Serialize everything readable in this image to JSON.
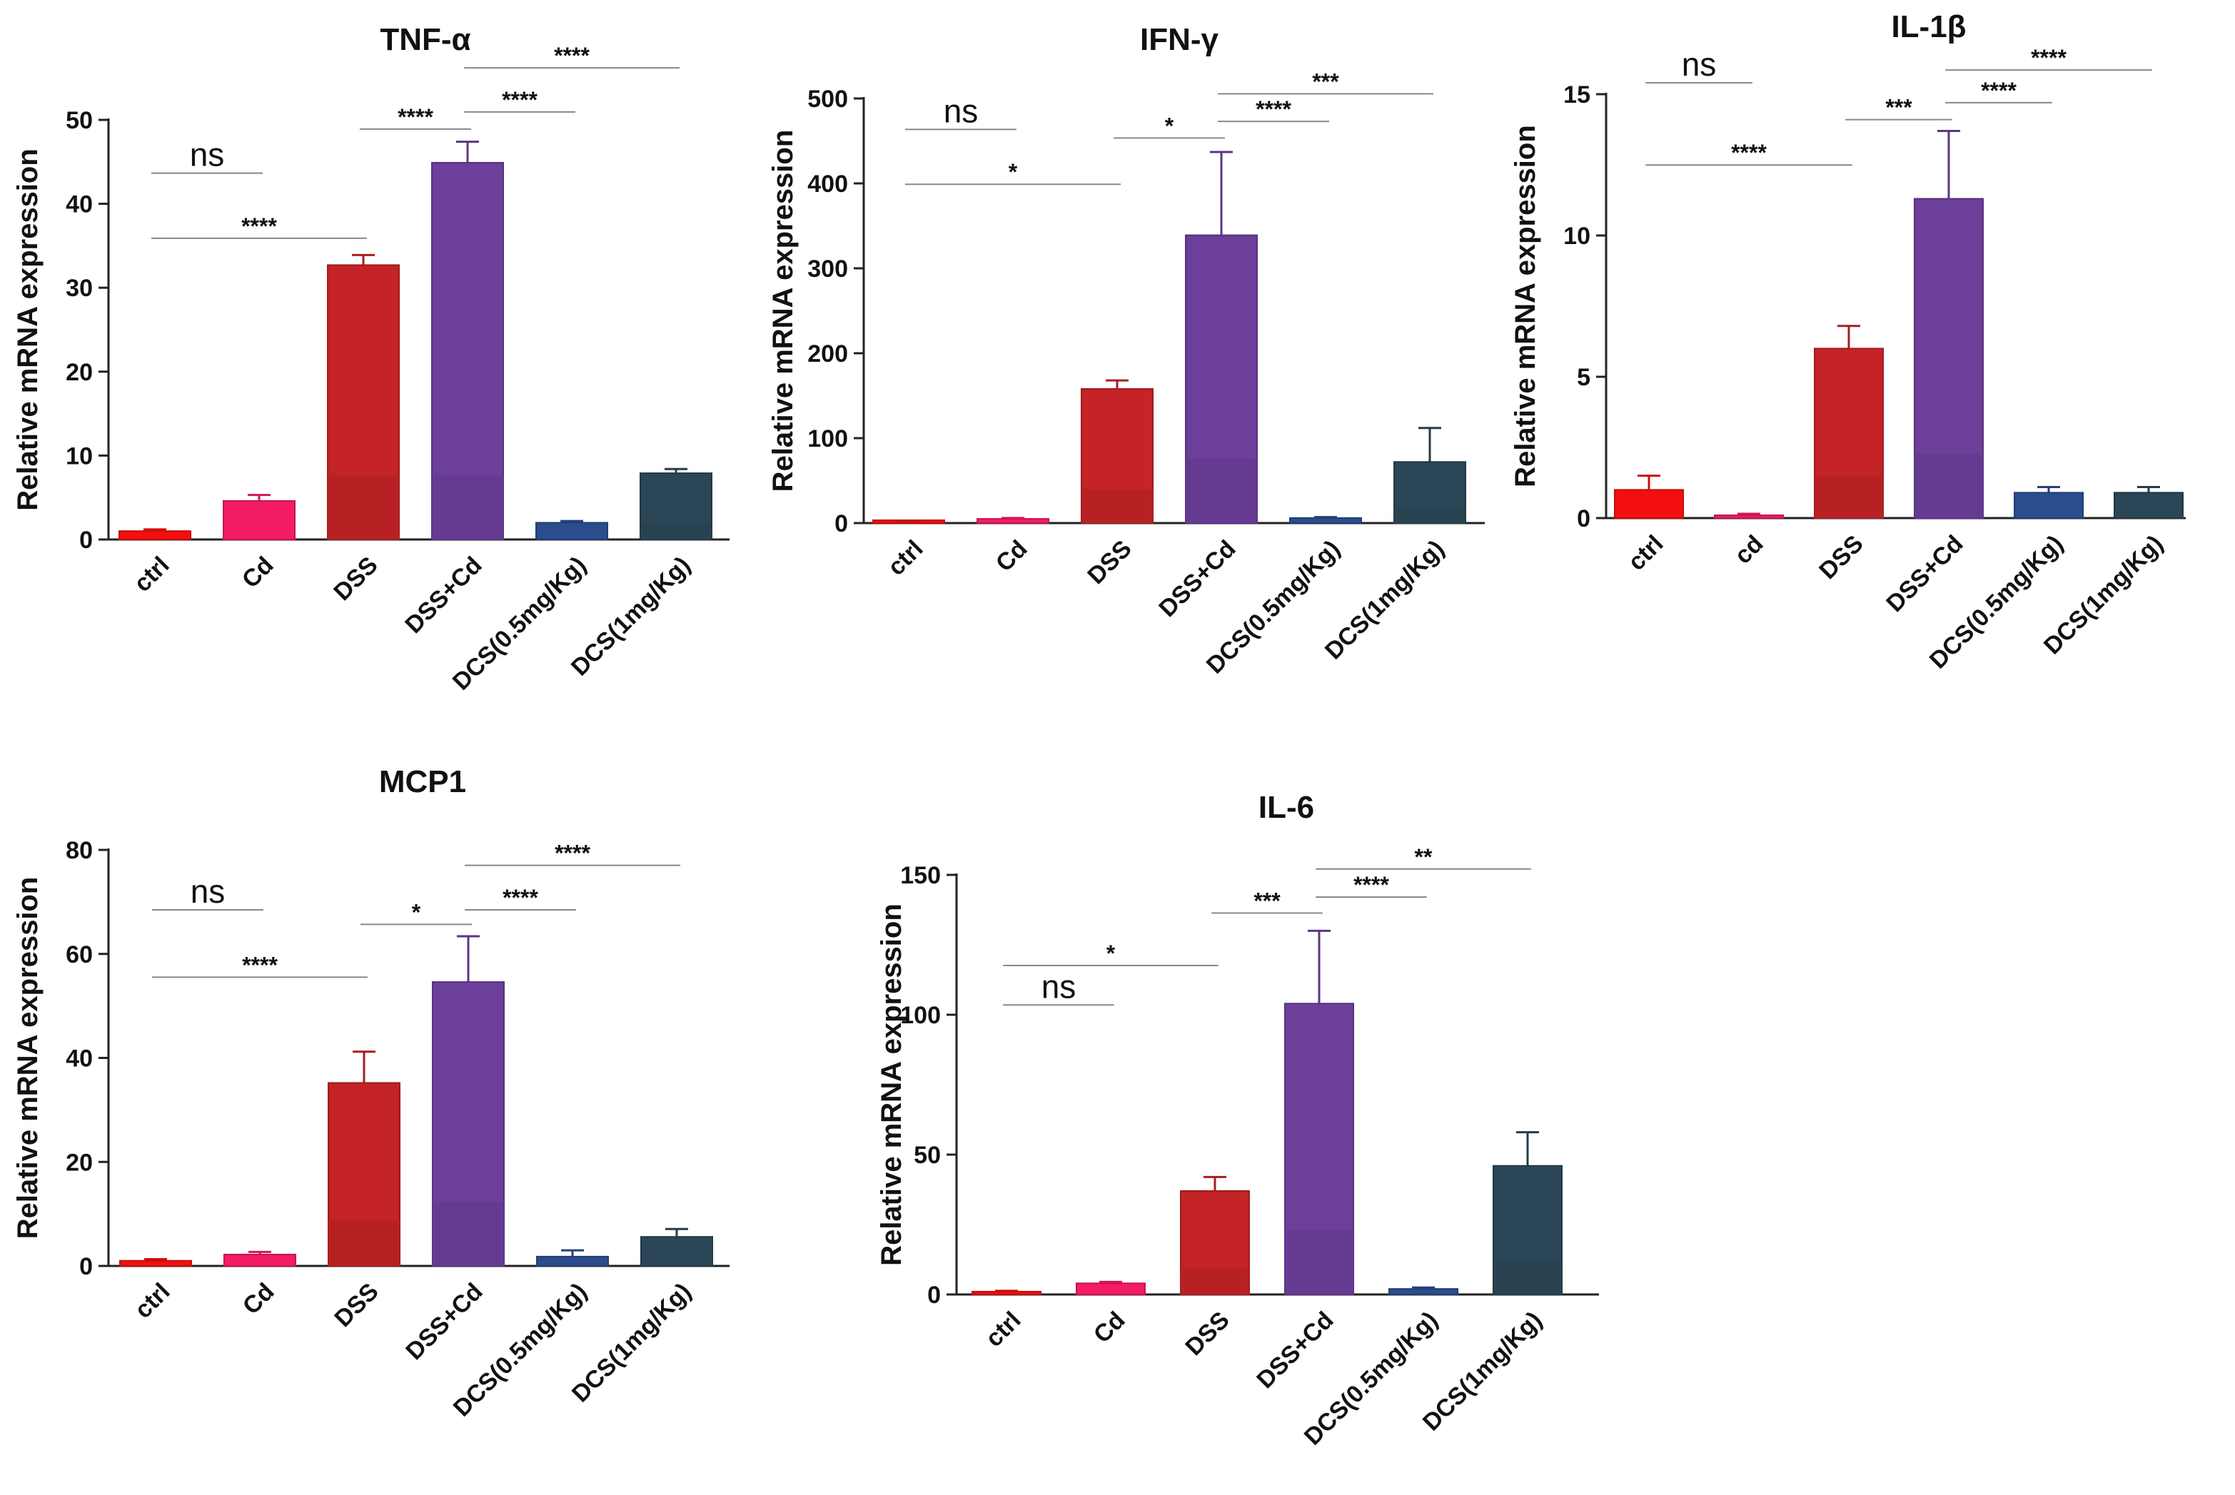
{
  "chart_data": [
    {
      "id": "tnf",
      "type": "bar",
      "title": "TNF-α",
      "xlabel": "",
      "ylabel": "Relative mRNA expression",
      "ylim": [
        0,
        50
      ],
      "yticks": [
        0,
        10,
        20,
        30,
        40,
        50
      ],
      "categories": [
        "ctrl",
        "Cd",
        "DSS",
        "DSS+Cd",
        "DCS(0.5mg/Kg)",
        "DCS(1mg/Kg)"
      ],
      "values": [
        1.0,
        4.6,
        32.7,
        44.9,
        2.0,
        7.9
      ],
      "errors": [
        0.2,
        0.7,
        1.2,
        2.5,
        0.2,
        0.5
      ],
      "colors": [
        "#f40f0f",
        "#f41c64",
        "#c42327",
        "#6c3f9b",
        "#2b4d8d",
        "#2b4656"
      ],
      "significance": [
        {
          "from": 0,
          "to": 1,
          "label": "ns",
          "level": 0.873
        },
        {
          "from": 0,
          "to": 2,
          "label": "****",
          "level": 0.718
        },
        {
          "from": 2,
          "to": 3,
          "label": "****",
          "level": 0.978
        },
        {
          "from": 3,
          "to": 4,
          "label": "****",
          "level": 1.019
        },
        {
          "from": 3,
          "to": 5,
          "label": "****",
          "level": 1.124
        }
      ]
    },
    {
      "id": "ifn",
      "type": "bar",
      "title": "IFN-γ",
      "xlabel": "",
      "ylabel": "Relative mRNA expression",
      "ylim": [
        0,
        500
      ],
      "yticks": [
        0,
        100,
        200,
        300,
        400,
        500
      ],
      "categories": [
        "ctrl",
        "Cd",
        "DSS",
        "DSS+Cd",
        "DCS(0.5mg/Kg)",
        "DCS(1mg/Kg)"
      ],
      "values": [
        1,
        5,
        158,
        339,
        6,
        72
      ],
      "errors": [
        0.5,
        1,
        10,
        98,
        1,
        40
      ],
      "colors": [
        "#f40f0f",
        "#f41c64",
        "#c42327",
        "#6c3f9b",
        "#2b4d8d",
        "#2b4656"
      ],
      "significance": [
        {
          "from": 0,
          "to": 1,
          "label": "ns",
          "level": 0.927
        },
        {
          "from": 0,
          "to": 2,
          "label": "*",
          "level": 0.798
        },
        {
          "from": 2,
          "to": 3,
          "label": "*",
          "level": 0.907
        },
        {
          "from": 3,
          "to": 4,
          "label": "****",
          "level": 0.946
        },
        {
          "from": 3,
          "to": 5,
          "label": "***",
          "level": 1.011
        }
      ]
    },
    {
      "id": "il1b",
      "type": "bar",
      "title": "IL-1β",
      "xlabel": "",
      "ylabel": "Relative mRNA expression",
      "ylim": [
        0,
        15
      ],
      "yticks": [
        0,
        5,
        10,
        15
      ],
      "categories": [
        "ctrl",
        "cd",
        "DSS",
        "DSS+Cd",
        "DCS(0.5mg/Kg)",
        "DCS(1mg/Kg)"
      ],
      "values": [
        1.0,
        0.1,
        6.0,
        11.3,
        0.9,
        0.9
      ],
      "errors": [
        0.5,
        0.05,
        0.8,
        2.4,
        0.2,
        0.2
      ],
      "colors": [
        "#f40f0f",
        "#f41c64",
        "#c42327",
        "#6c3f9b",
        "#2b4d8d",
        "#2b4656"
      ],
      "significance": [
        {
          "from": 0,
          "to": 1,
          "label": "ns",
          "level": 1.027
        },
        {
          "from": 0,
          "to": 2,
          "label": "****",
          "level": 0.833
        },
        {
          "from": 2,
          "to": 3,
          "label": "***",
          "level": 0.94
        },
        {
          "from": 3,
          "to": 4,
          "label": "****",
          "level": 0.98
        },
        {
          "from": 3,
          "to": 5,
          "label": "****",
          "level": 1.057
        }
      ]
    },
    {
      "id": "mcp1",
      "type": "bar",
      "title": "MCP1",
      "xlabel": "",
      "ylabel": "Relative mRNA expression",
      "ylim": [
        0,
        80
      ],
      "yticks": [
        0,
        20,
        40,
        60,
        80
      ],
      "categories": [
        "ctrl",
        "Cd",
        "DSS",
        "DSS+Cd",
        "DCS(0.5mg/Kg)",
        "DCS(1mg/Kg)"
      ],
      "values": [
        1.0,
        2.2,
        35.2,
        54.6,
        1.8,
        5.6
      ],
      "errors": [
        0.3,
        0.5,
        6.0,
        8.8,
        1.2,
        1.5
      ],
      "colors": [
        "#f40f0f",
        "#f41c64",
        "#c42327",
        "#6c3f9b",
        "#2b4d8d",
        "#2b4656"
      ],
      "significance": [
        {
          "from": 0,
          "to": 1,
          "label": "ns",
          "level": 0.856
        },
        {
          "from": 0,
          "to": 2,
          "label": "****",
          "level": 0.694
        },
        {
          "from": 2,
          "to": 3,
          "label": "*",
          "level": 0.821
        },
        {
          "from": 3,
          "to": 4,
          "label": "****",
          "level": 0.856
        },
        {
          "from": 3,
          "to": 5,
          "label": "****",
          "level": 0.963
        }
      ]
    },
    {
      "id": "il6",
      "type": "bar",
      "title": "IL-6",
      "xlabel": "",
      "ylabel": "Relative mRNA expression",
      "ylim": [
        0,
        150
      ],
      "yticks": [
        0,
        50,
        100,
        150
      ],
      "categories": [
        "ctrl",
        "Cd",
        "DSS",
        "DSS+Cd",
        "DCS(0.5mg/Kg)",
        "DCS(1mg/Kg)"
      ],
      "values": [
        1,
        4,
        37,
        104,
        2,
        46
      ],
      "errors": [
        0.3,
        0.5,
        5,
        26,
        0.5,
        12
      ],
      "colors": [
        "#f40f0f",
        "#f41c64",
        "#c42327",
        "#6c3f9b",
        "#2b4d8d",
        "#2b4656"
      ],
      "significance": [
        {
          "from": 0,
          "to": 1,
          "label": "ns",
          "level": 0.69
        },
        {
          "from": 0,
          "to": 2,
          "label": "*",
          "level": 0.784
        },
        {
          "from": 2,
          "to": 3,
          "label": "***",
          "level": 0.909
        },
        {
          "from": 3,
          "to": 4,
          "label": "****",
          "level": 0.947
        },
        {
          "from": 3,
          "to": 5,
          "label": "**",
          "level": 1.014
        }
      ]
    }
  ]
}
